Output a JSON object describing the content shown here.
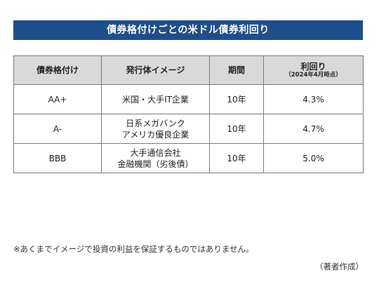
{
  "title": "債券格付けごとの米ドル債券利回り",
  "table": {
    "headers": {
      "rating": "債券格付け",
      "issuer": "発行体イメージ",
      "term": "期間",
      "yield": "利回り",
      "yield_note": "（2024年4月時点）"
    },
    "rows": [
      {
        "rating": "AA+",
        "issuer_line1": "米国・大手IT企業",
        "issuer_line2": "",
        "term": "10年",
        "yield": "4.3%"
      },
      {
        "rating": "A-",
        "issuer_line1": "日系メガバンク",
        "issuer_line2": "アメリカ優良企業",
        "term": "10年",
        "yield": "4.7%"
      },
      {
        "rating": "BBB",
        "issuer_line1": "大手通信会社",
        "issuer_line2": "金融機関（劣後債）",
        "term": "10年",
        "yield": "5.0%"
      }
    ]
  },
  "footnote": "※あくまでイメージで投資の利益を保証するものではありません。",
  "source": "（著者作成）",
  "colors": {
    "title_bg": "#1f4e8c",
    "header_bg": "#d9d9d9",
    "border": "#7a7a7a"
  }
}
